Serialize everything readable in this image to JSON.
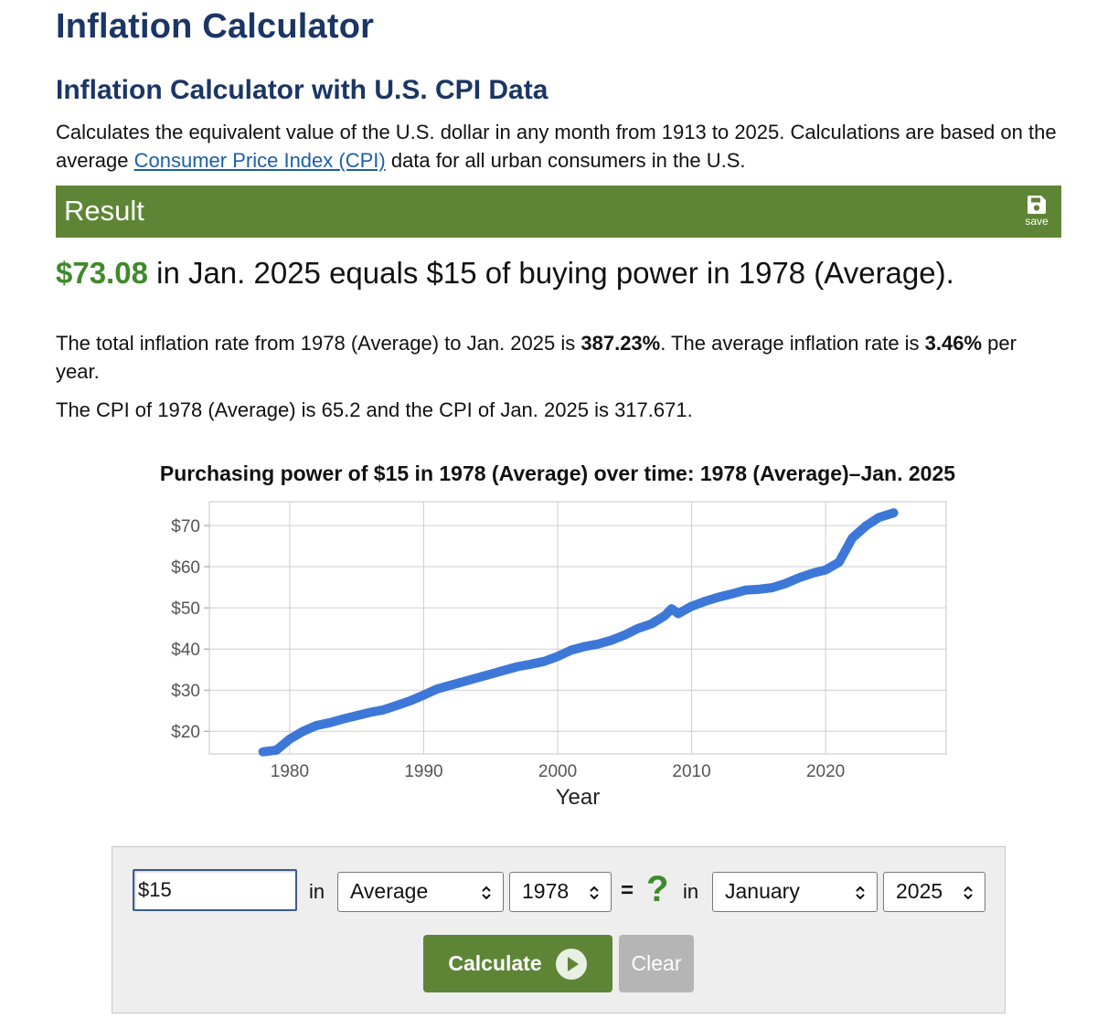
{
  "page": {
    "title": "Inflation Calculator",
    "subtitle": "Inflation Calculator with U.S. CPI Data",
    "description_before": "Calculates the equivalent value of the U.S. dollar in any month from 1913 to 2025. Calculations are based on the average ",
    "description_link": "Consumer Price Index (CPI)",
    "description_after": " data for all urban consumers in the U.S."
  },
  "result": {
    "label": "Result",
    "save_label": "save",
    "headline_amount": "$73.08",
    "headline_rest": " in Jan. 2025 equals $15 of buying power in 1978 (Average).",
    "para1_a": "The total inflation rate from 1978 (Average) to Jan. 2025 is ",
    "para1_total": "387.23%",
    "para1_b": ". The average inflation rate is ",
    "para1_avg": "3.46%",
    "para1_c": " per year.",
    "para2": "The CPI of 1978 (Average) is 65.2 and the CPI of Jan. 2025 is 317.671."
  },
  "chart_data": {
    "type": "line",
    "title": "Purchasing power of $15 in 1978 (Average) over time: 1978 (Average)–Jan. 2025",
    "xlabel": "Year",
    "ylabel": "",
    "xlim": [
      1974,
      2029
    ],
    "ylim": [
      14.5,
      75.8
    ],
    "x_ticks": [
      1980,
      1990,
      2000,
      2010,
      2020
    ],
    "x_tick_labels": [
      "1980",
      "1990",
      "2000",
      "2010",
      "2020"
    ],
    "y_ticks": [
      20,
      30,
      40,
      50,
      60,
      70
    ],
    "y_tick_labels": [
      "$20",
      "$30",
      "$40",
      "$50",
      "$60",
      "$70"
    ],
    "grid": true,
    "color": "#3d78d8",
    "series": [
      {
        "name": "",
        "x": [
          1978,
          1979,
          1980,
          1981,
          1982,
          1983,
          1984,
          1985,
          1986,
          1987,
          1988,
          1989,
          1990,
          1991,
          1992,
          1993,
          1994,
          1995,
          1996,
          1997,
          1998,
          1999,
          2000,
          2001,
          2002,
          2003,
          2004,
          2005,
          2006,
          2007,
          2008,
          2008.5,
          2009,
          2010,
          2011,
          2012,
          2013,
          2014,
          2015,
          2016,
          2017,
          2018,
          2019,
          2020,
          2021,
          2022,
          2023,
          2024,
          2025.08
        ],
        "y": [
          15.0,
          15.4,
          18.1,
          20.0,
          21.4,
          22.1,
          23.0,
          23.8,
          24.6,
          25.2,
          26.3,
          27.4,
          28.8,
          30.3,
          31.2,
          32.1,
          33.0,
          33.9,
          34.8,
          35.7,
          36.3,
          37.0,
          38.2,
          39.7,
          40.6,
          41.2,
          42.1,
          43.4,
          45.0,
          46.1,
          48.1,
          49.8,
          48.6,
          50.4,
          51.6,
          52.6,
          53.4,
          54.3,
          54.5,
          54.9,
          55.9,
          57.3,
          58.4,
          59.2,
          61.1,
          67.0,
          69.9,
          72.0,
          73.08
        ]
      }
    ]
  },
  "calculator": {
    "amount_value": "$15",
    "in_label": "in",
    "from_month": "Average",
    "from_year": "1978",
    "equals": "=",
    "question": "?",
    "in_label_2": "in",
    "to_month": "January",
    "to_year": "2025",
    "calculate_label": "Calculate",
    "clear_label": "Clear"
  }
}
